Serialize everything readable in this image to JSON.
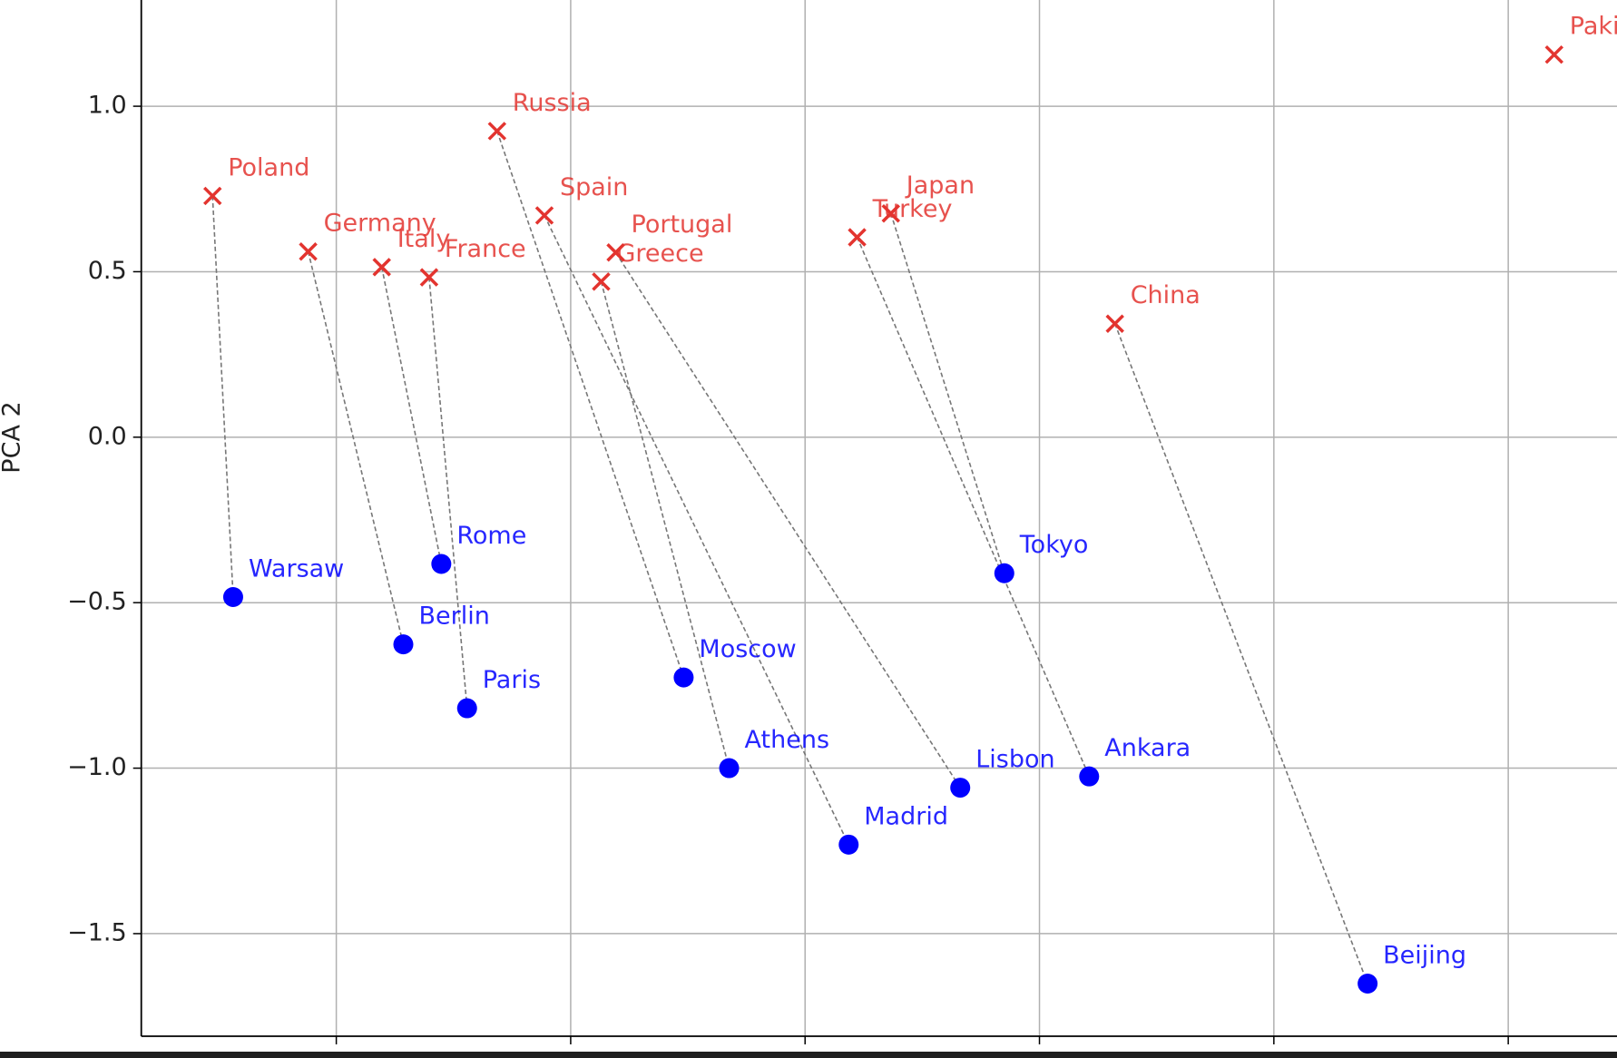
{
  "chart_data": {
    "type": "scatter",
    "ylabel": "PCA 2",
    "xlim": [
      -1.916,
      1.232
    ],
    "ylim": [
      -1.81,
      1.321
    ],
    "xticks": [
      -1.5,
      -1.0,
      -0.5,
      0.0,
      0.5,
      1.0
    ],
    "yticks": [
      {
        "value": -1.5,
        "label": "−1.5"
      },
      {
        "value": -1.0,
        "label": "−1.0"
      },
      {
        "value": -0.5,
        "label": "−0.5"
      },
      {
        "value": 0.0,
        "label": "0.0"
      },
      {
        "value": 0.5,
        "label": "0.5"
      },
      {
        "value": 1.0,
        "label": "1.0"
      }
    ],
    "grid": true,
    "connectors": true,
    "series": [
      {
        "marker": "x",
        "color": "#e3342f",
        "labels": [
          "Poland",
          "Germany",
          "Italy",
          "France",
          "Russia",
          "Spain",
          "Greece",
          "Portugal",
          "Turkey",
          "Japan",
          "China",
          "Pakistan"
        ],
        "x": [
          -1.764,
          -1.56,
          -1.403,
          -1.302,
          -1.157,
          -1.056,
          -0.935,
          -0.904,
          -0.389,
          -0.317,
          0.161,
          1.098
        ],
        "y": [
          0.729,
          0.561,
          0.514,
          0.483,
          0.925,
          0.67,
          0.47,
          0.558,
          0.604,
          0.676,
          0.343,
          1.156
        ]
      },
      {
        "marker": "o",
        "color": "#0000ff",
        "labels": [
          "Warsaw",
          "Berlin",
          "Rome",
          "Paris",
          "Moscow",
          "Madrid",
          "Athens",
          "Lisbon",
          "Ankara",
          "Tokyo",
          "Beijing"
        ],
        "x": [
          -1.72,
          -1.357,
          -1.276,
          -1.221,
          -0.759,
          -0.407,
          -0.662,
          -0.169,
          0.106,
          -0.075,
          0.7
        ],
        "y": [
          -0.483,
          -0.626,
          -0.383,
          -0.819,
          -0.726,
          -1.231,
          -1.0,
          -1.059,
          -1.025,
          -0.411,
          -1.651
        ]
      }
    ]
  }
}
